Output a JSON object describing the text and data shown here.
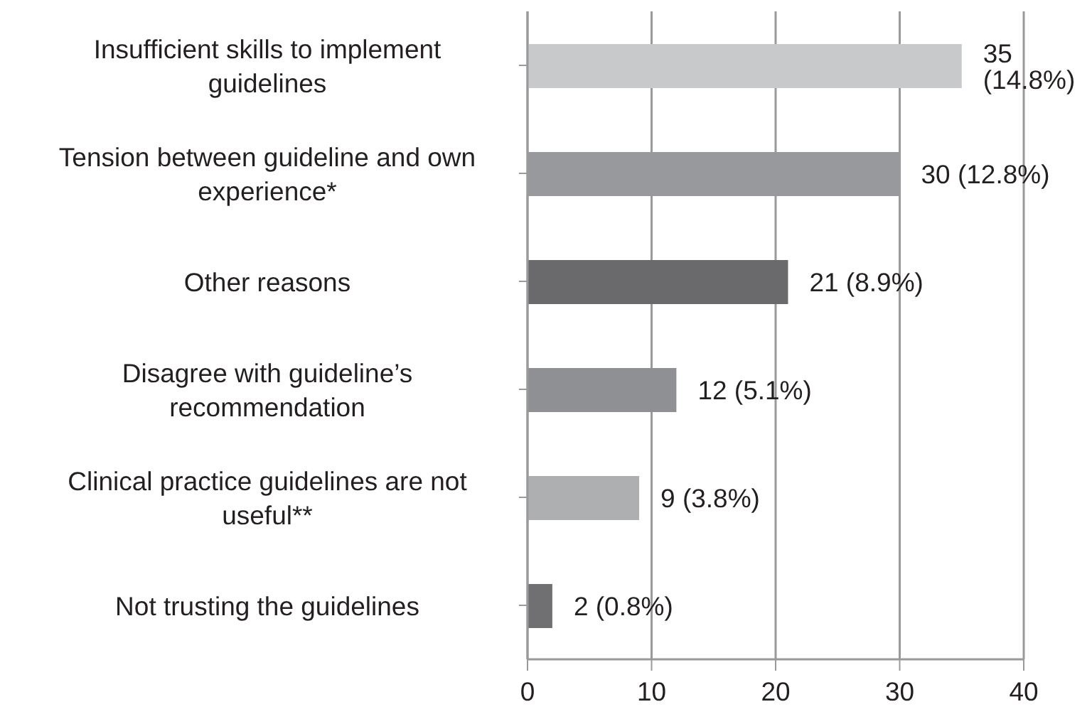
{
  "chart_data": {
    "type": "bar",
    "orientation": "horizontal",
    "categories": [
      "Insufficient skills to implement guidelines",
      "Tension between guideline and own experience*",
      "Other reasons",
      "Disagree with guideline’s recommendation",
      "Clinical practice guidelines are not useful**",
      "Not trusting the guidelines"
    ],
    "values": [
      35,
      30,
      21,
      12,
      9,
      2
    ],
    "value_labels": [
      "35 (14.8%)",
      "30 (12.8%)",
      "21 (8.9%)",
      "12 (5.1%)",
      "9 (3.8%)",
      "2 (0.8%)"
    ],
    "colors": [
      "#c8c9cb",
      "#98999c",
      "#6a6a6c",
      "#8f9093",
      "#aeafb1",
      "#707072"
    ],
    "xlim": [
      0,
      40
    ],
    "xticks": [
      0,
      10,
      20,
      30,
      40
    ],
    "grid": "x"
  }
}
